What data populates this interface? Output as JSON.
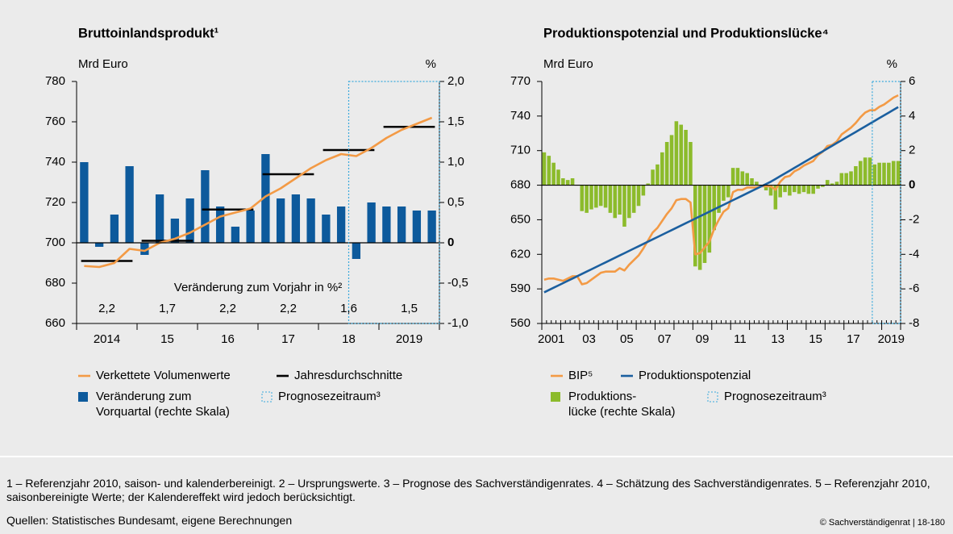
{
  "chart_data": [
    {
      "type": "combo",
      "title": "Bruttoinlandsprodukt¹",
      "y_label": "Mrd Euro",
      "y2_label": "%",
      "xlabels": [
        "2014",
        "15",
        "16",
        "17",
        "18",
        "2019"
      ],
      "ylim": [
        660,
        780
      ],
      "yticks": [
        660,
        680,
        700,
        720,
        740,
        760,
        780
      ],
      "y2lim": [
        -1,
        2
      ],
      "y2ticks": [
        {
          "value": -1,
          "label": "-1,0"
        },
        {
          "value": -0.5,
          "label": "-0,5"
        },
        0,
        {
          "value": 0.5,
          "label": "0,5"
        },
        {
          "value": 1,
          "label": "1,0"
        },
        {
          "value": 1.5,
          "label": "1,5"
        },
        {
          "value": 2,
          "label": "2,0"
        }
      ],
      "forecast_start": 18,
      "forecast_legend": "Prognosezeitraum³",
      "forecast_color": "#39a9dc",
      "series": [
        {
          "name": "Verkettete Volumenwerte",
          "type": "line",
          "color": "#f39a45",
          "values": [
            688.5,
            688,
            690,
            697,
            696,
            700,
            702,
            705,
            709,
            713,
            715,
            717,
            723,
            727,
            732,
            737,
            741,
            744,
            743,
            747,
            752,
            756,
            759,
            762
          ]
        },
        {
          "name": "Jahresdurchschnitte",
          "type": "annual",
          "color": "#000000",
          "values": [
            691,
            701,
            716.5,
            734,
            746,
            757.5
          ]
        },
        {
          "name": "Veränderung zum\nVorquartal (rechte Skala)",
          "type": "bar",
          "axis": "y2",
          "color": "#0d5a9c",
          "values": [
            1.0,
            -0.05,
            0.35,
            0.95,
            -0.15,
            0.6,
            0.3,
            0.55,
            0.9,
            0.45,
            0.2,
            0.4,
            1.1,
            0.55,
            0.6,
            0.55,
            0.35,
            0.45,
            -0.2,
            0.5,
            0.45,
            0.45,
            0.4,
            0.4
          ]
        }
      ],
      "annual_change": {
        "label": "Veränderung zum Vorjahr in %²",
        "values": [
          2.2,
          1.7,
          2.2,
          2.2,
          1.6,
          1.5
        ],
        "value_labels": [
          "2,2",
          "1,7",
          "2,2",
          "2,2",
          "1,6",
          "1,5"
        ]
      }
    },
    {
      "type": "combo",
      "title": "Produktionspotenzial und Produktionslücke⁴",
      "y_label": "Mrd Euro",
      "y2_label": "%",
      "xlabels": [
        "2001",
        null,
        "03",
        null,
        "05",
        null,
        "07",
        null,
        "09",
        null,
        "11",
        null,
        "13",
        null,
        "15",
        null,
        "17",
        null,
        "2019"
      ],
      "quarter_ticks": true,
      "ylim": [
        560,
        770
      ],
      "yticks": [
        560,
        590,
        620,
        650,
        680,
        710,
        740,
        770
      ],
      "y2lim": [
        -8,
        6
      ],
      "y2ticks": [
        -8,
        -6,
        -4,
        -2,
        0,
        2,
        4,
        6
      ],
      "forecast_start": 70,
      "forecast_legend": "Prognosezeitraum³",
      "forecast_color": "#39a9dc",
      "series": [
        {
          "name": "BIP⁵",
          "type": "line",
          "color": "#f39a45",
          "values": [
            598,
            599,
            599,
            598,
            597,
            599,
            601,
            601,
            594,
            595,
            598,
            601,
            604,
            605,
            605,
            605,
            608,
            606,
            611,
            615,
            619,
            625,
            632,
            639,
            643,
            649,
            655,
            660,
            667,
            668,
            668,
            665,
            620,
            621,
            626,
            631,
            642,
            650,
            657,
            660,
            674,
            676,
            676,
            678,
            678,
            678,
            679,
            679,
            679,
            676,
            683,
            687,
            688,
            692,
            694,
            697,
            699,
            701,
            706,
            709,
            714,
            715,
            718,
            724,
            727,
            730,
            734,
            739,
            743,
            745,
            745,
            748,
            750,
            753,
            756,
            758
          ]
        },
        {
          "name": "Produktionspotenzial",
          "type": "line",
          "color": "#1b5f9f",
          "values": [
            587,
            589,
            591,
            593,
            595,
            597,
            599,
            601,
            603,
            605,
            607,
            609,
            611,
            613,
            615,
            617,
            619,
            621,
            623,
            625,
            627,
            629,
            631,
            633,
            635,
            637,
            639,
            641,
            643,
            645,
            647,
            649,
            651,
            653,
            655,
            657,
            659,
            661,
            663,
            665,
            667,
            669,
            671,
            673,
            675,
            677,
            679,
            681,
            683,
            685.4,
            687.8,
            690.2,
            692.6,
            695,
            697.4,
            699.8,
            702.2,
            704.6,
            707,
            709.4,
            711.8,
            714.2,
            716.6,
            719,
            721.4,
            723.8,
            726.2,
            728.6,
            731,
            733.4,
            735.8,
            738.2,
            740.6,
            743,
            745.4,
            747.8
          ]
        },
        {
          "name": "Produktions-\nlücke (rechte Skala)",
          "type": "bar",
          "axis": "y2",
          "color": "#8cbb2b",
          "values": [
            1.9,
            1.7,
            1.3,
            0.9,
            0.4,
            0.3,
            0.4,
            0,
            -1.5,
            -1.6,
            -1.4,
            -1.3,
            -1.2,
            -1.3,
            -1.6,
            -1.9,
            -1.7,
            -2.4,
            -1.9,
            -1.6,
            -1.2,
            -0.6,
            0.1,
            0.9,
            1.2,
            1.9,
            2.5,
            2.9,
            3.7,
            3.5,
            3.2,
            2.5,
            -4.7,
            -4.9,
            -4.5,
            -3.9,
            -2.6,
            -1.6,
            -0.9,
            -0.7,
            1.0,
            1.0,
            0.8,
            0.7,
            0.4,
            0.2,
            0,
            -0.3,
            -0.6,
            -1.4,
            -0.7,
            -0.4,
            -0.6,
            -0.4,
            -0.5,
            -0.4,
            -0.5,
            -0.5,
            -0.2,
            -0.1,
            0.3,
            0.1,
            0.2,
            0.7,
            0.7,
            0.8,
            1.1,
            1.4,
            1.6,
            1.6,
            1.2,
            1.3,
            1.3,
            1.3,
            1.4,
            1.4
          ]
        }
      ]
    }
  ],
  "footnotes": "1 – Referenzjahr 2010, saison- und kalenderbereinigt. 2 – Ursprungswerte. 3 – Prognose des Sachverständigenrates. 4 – Schätzung des Sachverständigenrates. 5 – Referenzjahr 2010, saisonbereinigte Werte; der Kalendereffekt wird jedoch berücksichtigt.",
  "sources": "Quellen: Statistisches Bundesamt, eigene Berechnungen",
  "copyright": "© Sachverständigenrat | 18-180"
}
